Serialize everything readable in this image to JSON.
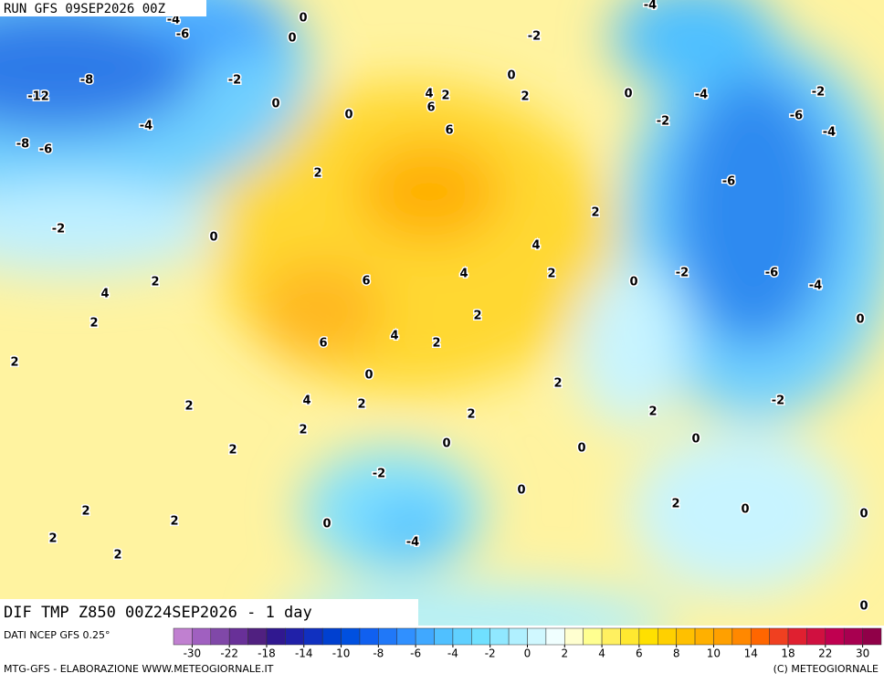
{
  "header": {
    "run": "RUN GFS 09SEP2026 00Z"
  },
  "map": {
    "contour_labels": [
      -4,
      -6,
      0,
      0,
      -2,
      -4,
      -8,
      -12,
      -2,
      0,
      0,
      4,
      2,
      6,
      0,
      2,
      0,
      -4,
      -2,
      -4,
      6,
      -2,
      -6,
      -4,
      -8,
      -6,
      2,
      -6,
      2,
      -2,
      0,
      4,
      4,
      2,
      0,
      -2,
      -6,
      -4,
      2,
      4,
      6,
      2,
      2,
      0,
      6,
      4,
      2,
      2,
      0,
      2,
      4,
      2,
      2,
      -2,
      2,
      2,
      2,
      0,
      2,
      0,
      0,
      -2,
      0,
      2,
      2,
      2,
      0,
      0,
      0,
      2,
      -4,
      2,
      0
    ]
  },
  "footer": {
    "title": "DIF TMP Z850 00Z24SEP2026 - 1 day",
    "source": "DATI NCEP GFS 0.25°",
    "credit": "MTG-GFS - ELABORAZIONE WWW.METEOGIORNALE.IT",
    "copyright": "(C) METEOGIORNALE"
  },
  "colorbar": {
    "ticks": [
      -30,
      -22,
      -18,
      -14,
      -10,
      -8,
      -6,
      -4,
      -2,
      0,
      2,
      4,
      6,
      8,
      10,
      14,
      18,
      22,
      30
    ],
    "colors": [
      "#c080d0",
      "#a060c0",
      "#8048a8",
      "#683098",
      "#502080",
      "#301890",
      "#2020a8",
      "#1030c0",
      "#0040d0",
      "#0050e0",
      "#1060f0",
      "#2078f8",
      "#3090ff",
      "#40a8ff",
      "#50c0ff",
      "#60d0ff",
      "#70e0ff",
      "#90e8ff",
      "#b0f0ff",
      "#d0f8ff",
      "#f0ffff",
      "#ffffd0",
      "#ffff90",
      "#fff060",
      "#ffe830",
      "#ffe000",
      "#ffd000",
      "#ffc000",
      "#ffb000",
      "#ffa000",
      "#ff8800",
      "#ff6600",
      "#f04020",
      "#e02030",
      "#d01040",
      "#c00050",
      "#a80050",
      "#900048"
    ]
  }
}
